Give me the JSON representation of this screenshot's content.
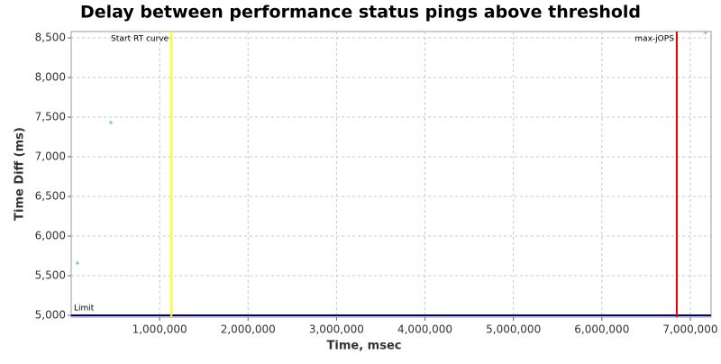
{
  "chart_data": {
    "type": "scatter",
    "title": "Delay between performance status pings above threshold",
    "x_label": "Time, msec",
    "y_label": "Time Diff (ms)",
    "x": [
      71000,
      449000,
      7173000
    ],
    "values": [
      5659,
      7432,
      8568
    ],
    "color": "#6fc3e8",
    "xlim": [
      0,
      7235000
    ],
    "ylim": [
      4977,
      8580
    ],
    "xticks": [
      {
        "value": 1000000,
        "label": "1,000,000"
      },
      {
        "value": 2000000,
        "label": "2,000,000"
      },
      {
        "value": 3000000,
        "label": "3,000,000"
      },
      {
        "value": 4000000,
        "label": "4,000,000"
      },
      {
        "value": 5000000,
        "label": "5,000,000"
      },
      {
        "value": 6000000,
        "label": "6,000,000"
      },
      {
        "value": 7000000,
        "label": "7,000,000"
      }
    ],
    "yticks": [
      {
        "value": 5000,
        "label": "5,000"
      },
      {
        "value": 5500,
        "label": "5,500"
      },
      {
        "value": 6000,
        "label": "6,000"
      },
      {
        "value": 6500,
        "label": "6,500"
      },
      {
        "value": 7000,
        "label": "7,000"
      },
      {
        "value": 7500,
        "label": "7,500"
      },
      {
        "value": 8000,
        "label": "8,000"
      },
      {
        "value": 8500,
        "label": "8,500"
      }
    ],
    "grid": true,
    "x_markers": [
      {
        "label": "Start RT curve",
        "value": 1133000,
        "color": "#ffff00"
      },
      {
        "label": "max-jOPS",
        "value": 6847000,
        "color": "#e00000"
      }
    ],
    "y_markers": [
      {
        "label": "Limit",
        "value": 5000,
        "color": "#000080"
      }
    ]
  }
}
